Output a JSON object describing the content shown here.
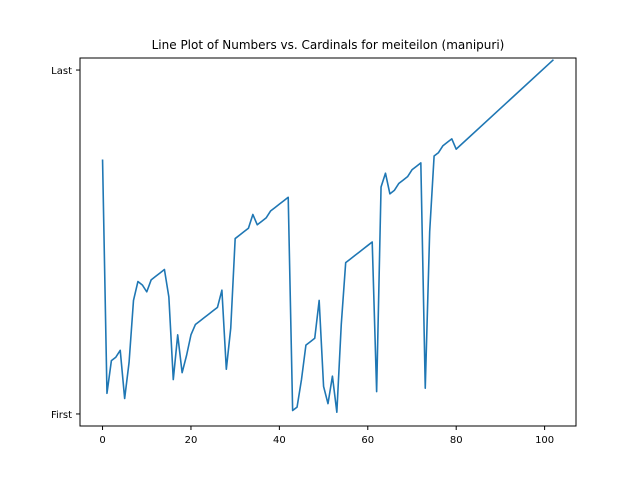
{
  "chart_data": {
    "type": "line",
    "title": "Line Plot of Numbers vs. Cardinals for meiteilon (manipuri)",
    "xlabel": "",
    "ylabel": "",
    "xlim": [
      -5.1,
      107.1
    ],
    "ylim": [
      -0.035,
      1.035
    ],
    "x_ticks": [
      {
        "value": 0,
        "label": "0"
      },
      {
        "value": 20,
        "label": "20"
      },
      {
        "value": 40,
        "label": "40"
      },
      {
        "value": 60,
        "label": "60"
      },
      {
        "value": 80,
        "label": "80"
      },
      {
        "value": 100,
        "label": "100"
      }
    ],
    "y_ticks": [
      {
        "value": 0,
        "label": "First"
      },
      {
        "value": 1,
        "label": "Last"
      }
    ],
    "grid": false,
    "series": [
      {
        "color": "#1f77b4",
        "x": [
          0,
          1,
          2,
          3,
          4,
          5,
          6,
          7,
          8,
          9,
          10,
          11,
          12,
          13,
          14,
          15,
          16,
          17,
          18,
          19,
          20,
          21,
          22,
          23,
          24,
          25,
          26,
          27,
          28,
          29,
          30,
          31,
          32,
          33,
          34,
          35,
          36,
          37,
          38,
          39,
          40,
          41,
          42,
          43,
          44,
          45,
          46,
          47,
          48,
          49,
          50,
          51,
          52,
          53,
          54,
          55,
          56,
          57,
          58,
          59,
          60,
          61,
          62,
          63,
          64,
          65,
          66,
          67,
          68,
          69,
          70,
          71,
          72,
          73,
          74,
          75,
          76,
          77,
          78,
          79,
          80,
          102
        ],
        "y": [
          0.74,
          0.06,
          0.155,
          0.165,
          0.185,
          0.045,
          0.15,
          0.33,
          0.385,
          0.375,
          0.355,
          0.39,
          0.4,
          0.41,
          0.42,
          0.34,
          0.1,
          0.23,
          0.12,
          0.17,
          0.23,
          0.26,
          0.27,
          0.28,
          0.29,
          0.3,
          0.31,
          0.36,
          0.13,
          0.25,
          0.51,
          0.52,
          0.53,
          0.54,
          0.58,
          0.55,
          0.56,
          0.57,
          0.59,
          0.6,
          0.61,
          0.62,
          0.63,
          0.01,
          0.02,
          0.1,
          0.2,
          0.21,
          0.22,
          0.33,
          0.08,
          0.03,
          0.11,
          0.005,
          0.26,
          0.44,
          0.45,
          0.46,
          0.47,
          0.48,
          0.49,
          0.5,
          0.065,
          0.66,
          0.7,
          0.64,
          0.65,
          0.67,
          0.68,
          0.69,
          0.71,
          0.72,
          0.73,
          0.075,
          0.53,
          0.75,
          0.76,
          0.78,
          0.79,
          0.8,
          0.77,
          1.03
        ]
      }
    ]
  }
}
